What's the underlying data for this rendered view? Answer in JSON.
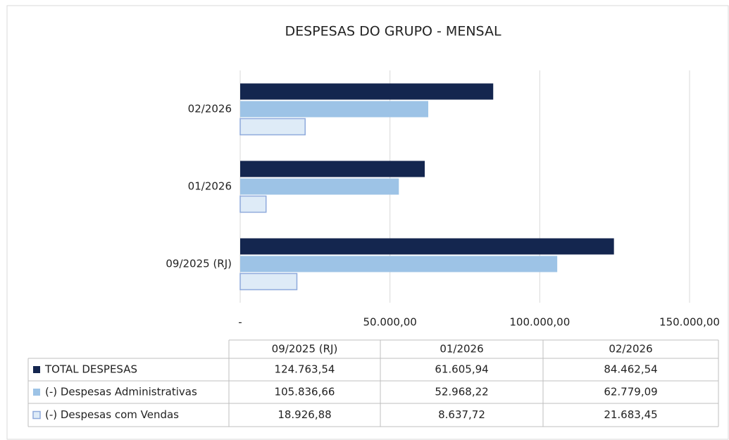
{
  "chart_data": {
    "type": "hbar",
    "title": "DESPESAS DO GRUPO - MENSAL",
    "categories": [
      "09/2025 (RJ)",
      "01/2026",
      "02/2026"
    ],
    "series": [
      {
        "name": "TOTAL DESPESAS",
        "color": "#14264f",
        "values": [
          124763.54,
          61605.94,
          84462.54
        ],
        "value_labels": [
          "124.763,54",
          "61.605,94",
          "84.462,54"
        ]
      },
      {
        "name": "(-) Despesas Administrativas",
        "color": "#9dc3e6",
        "values": [
          105836.66,
          52968.22,
          62779.09
        ],
        "value_labels": [
          "105.836,66",
          "52.968,22",
          "62.779,09"
        ]
      },
      {
        "name": "(-) Despesas com Vendas",
        "color": "#deebf7",
        "values": [
          18926.88,
          8637.72,
          21683.45
        ],
        "value_labels": [
          "18.926,88",
          "8.637,72",
          "21.683,45"
        ]
      }
    ],
    "xlim": [
      0,
      150000
    ],
    "xticks": [
      {
        "value": 0,
        "label": "-"
      },
      {
        "value": 50000,
        "label": "50.000,00"
      },
      {
        "value": 100000,
        "label": "100.000,00"
      },
      {
        "value": 150000,
        "label": "150.000,00"
      }
    ],
    "grid": true
  }
}
